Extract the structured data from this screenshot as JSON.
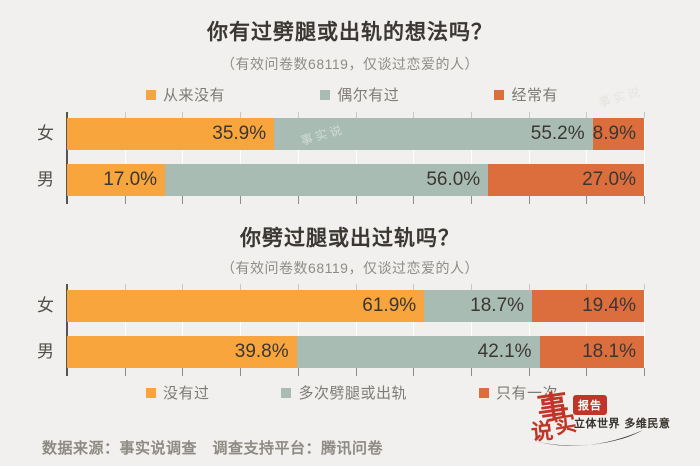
{
  "page": {
    "background": "#F1F0EE",
    "watermark_text": "事实说"
  },
  "chart_data": [
    {
      "type": "bar",
      "orientation": "horizontal_stacked",
      "title": "你有过劈腿或出轨的想法吗？",
      "subtitle": "（有效问卷数68119，仅谈过恋爱的人）",
      "legend_position": "top",
      "xlim": [
        0,
        100
      ],
      "unit": "%",
      "grid": "vertical ticks every 10%",
      "categories": [
        "女",
        "男"
      ],
      "series": [
        {
          "name": "从来没有",
          "color": "#F7A53C",
          "values": [
            35.9,
            17.0
          ]
        },
        {
          "name": "偶尔有过",
          "color": "#A9BCB4",
          "values": [
            55.2,
            56.0
          ]
        },
        {
          "name": "经常有",
          "color": "#DB6E3C",
          "values": [
            8.9,
            27.0
          ]
        }
      ]
    },
    {
      "type": "bar",
      "orientation": "horizontal_stacked",
      "title": "你劈过腿或出过轨吗？",
      "subtitle": "（有效问卷数68119，仅谈过恋爱的人）",
      "legend_position": "bottom",
      "xlim": [
        0,
        100
      ],
      "unit": "%",
      "grid": "vertical ticks every 10%",
      "categories": [
        "女",
        "男"
      ],
      "series": [
        {
          "name": "没有过",
          "color": "#F7A53C",
          "values": [
            61.9,
            39.8
          ]
        },
        {
          "name": "多次劈腿或出轨",
          "color": "#A9BCB4",
          "values": [
            18.7,
            42.1
          ]
        },
        {
          "name": "只有一次",
          "color": "#DB6E3C",
          "values": [
            19.4,
            18.1
          ]
        }
      ]
    }
  ],
  "footer": {
    "source": "数据来源：事实说调查　调查支持平台：腾讯问卷"
  },
  "logo": {
    "char_top": "事",
    "char_right": "实",
    "char_left": "说",
    "badge": "报告",
    "tagline": "立体世界 多维民意",
    "red": "#BF3627",
    "ink": "#2B2824"
  }
}
